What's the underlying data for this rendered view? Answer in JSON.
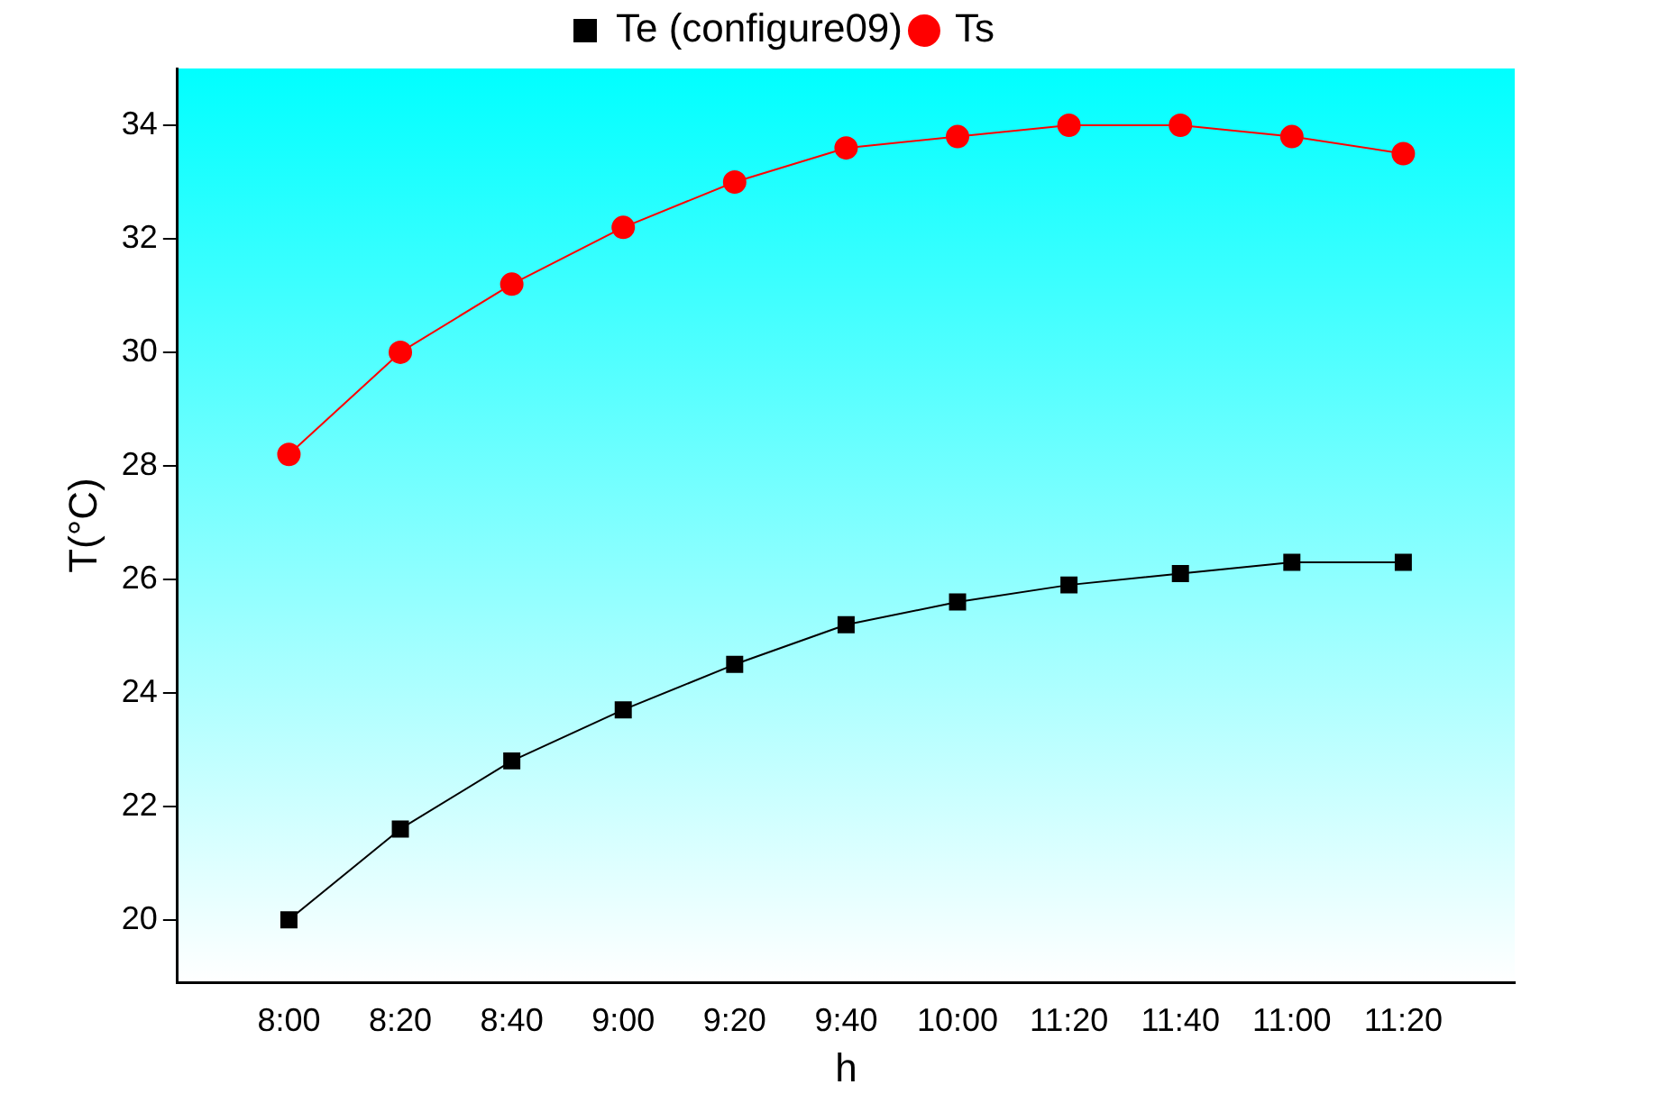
{
  "chart_data": {
    "type": "line",
    "xlabel": "h",
    "ylabel": "T(°C)",
    "categories": [
      "8:00",
      "8:20",
      "8:40",
      "9:00",
      "9:20",
      "9:40",
      "10:00",
      "11:20",
      "11:40",
      "11:00",
      "11:20"
    ],
    "ylim": [
      18.9,
      35
    ],
    "yticks": [
      20,
      22,
      24,
      26,
      28,
      30,
      32,
      34
    ],
    "grid": false,
    "legend": "top",
    "series": [
      {
        "name": "Te (configure09)",
        "color": "#000000",
        "marker": "square",
        "values": [
          20,
          21.6,
          22.8,
          23.7,
          24.5,
          25.2,
          25.6,
          25.9,
          26.1,
          26.3,
          26.3
        ]
      },
      {
        "name": "Ts",
        "color": "#ff0000",
        "marker": "circle",
        "values": [
          28.2,
          30,
          31.2,
          32.2,
          33,
          33.6,
          33.8,
          34,
          34,
          33.8,
          33.5
        ]
      }
    ]
  }
}
